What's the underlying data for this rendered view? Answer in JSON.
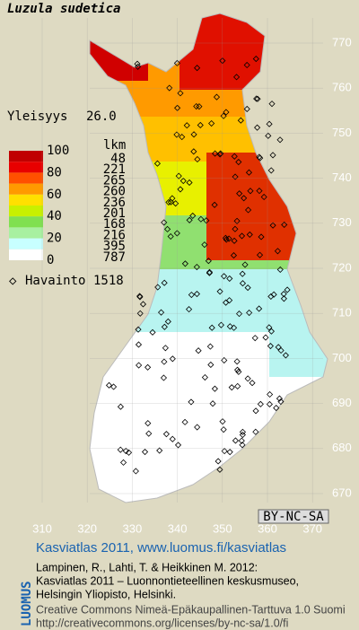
{
  "title": "Luzula sudetica",
  "frequency": {
    "label": "Yleisyys",
    "value": "26.0"
  },
  "legend": {
    "scale": [
      "100",
      "80",
      "60",
      "40",
      "20",
      "0"
    ],
    "count_header": "lkm",
    "counts": [
      "48",
      "221",
      "265",
      "260",
      "236",
      "201",
      "168",
      "216",
      "395",
      "787"
    ]
  },
  "observations": {
    "label": "Havainto",
    "value": "1518"
  },
  "grid": {
    "y_labels": [
      "770",
      "760",
      "750",
      "740",
      "730",
      "720",
      "710",
      "700",
      "690",
      "680",
      "670"
    ],
    "x_labels": [
      "310",
      "320",
      "330",
      "340",
      "350",
      "360",
      "370"
    ]
  },
  "license_badge": "BY-NC-SA",
  "footer": {
    "brand": "LUOMUS",
    "heading": "Kasviatlas 2011, www.luomus.fi/kasviatlas",
    "citation": [
      "Lampinen, R., Lahti, T. & Heikkinen M. 2012:",
      "Kasviatlas 2011 – Luonnontieteellinen keskusmuseo,",
      "Helsingin Yliopisto, Helsinki."
    ],
    "license": [
      "Creative Commons Nimeä-Epäkaupallinen-Tarttuva 1.0 Suomi",
      "http://creativecommons.org/licenses/by-nc-sa/1.0/fi"
    ]
  }
}
